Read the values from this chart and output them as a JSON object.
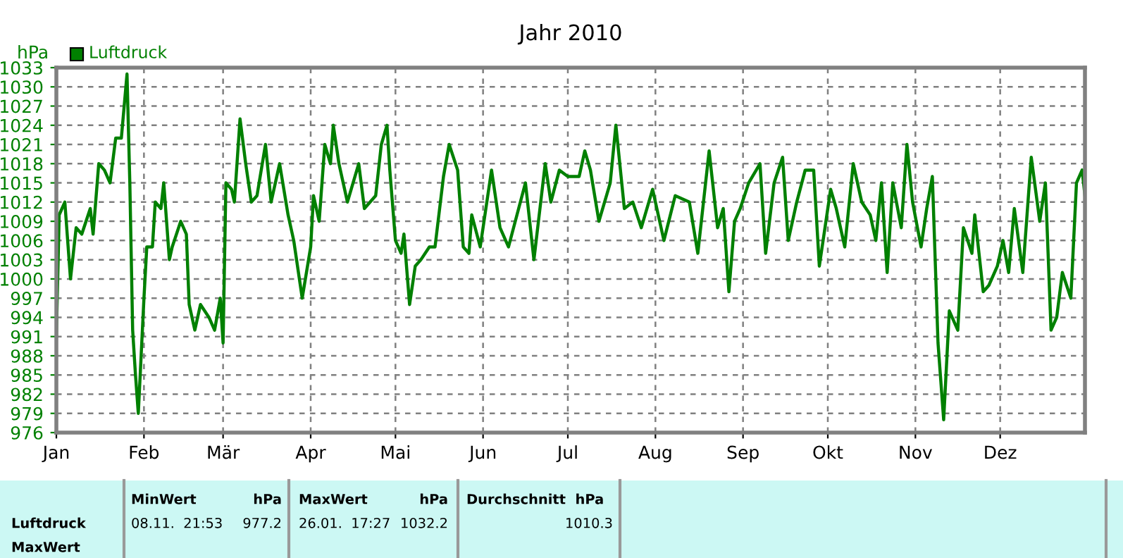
{
  "chart_data": {
    "type": "line",
    "title": "Jahr 2010",
    "ylabel": "hPa",
    "legend": "top left",
    "grid": true,
    "line_style": "solid",
    "marker": "none",
    "xlim": [
      "2010-01-01",
      "2010-12-31"
    ],
    "xticks": [
      {
        "value": "2010-01-01",
        "label": "Jan"
      },
      {
        "value": "2010-02-01",
        "label": "Feb"
      },
      {
        "value": "2010-03-01",
        "label": "Mär"
      },
      {
        "value": "2010-04-01",
        "label": "Apr"
      },
      {
        "value": "2010-05-01",
        "label": "Mai"
      },
      {
        "value": "2010-06-01",
        "label": "Jun"
      },
      {
        "value": "2010-07-01",
        "label": "Jul"
      },
      {
        "value": "2010-08-01",
        "label": "Aug"
      },
      {
        "value": "2010-09-01",
        "label": "Sep"
      },
      {
        "value": "2010-10-01",
        "label": "Okt"
      },
      {
        "value": "2010-11-01",
        "label": "Nov"
      },
      {
        "value": "2010-12-01",
        "label": "Dez"
      }
    ],
    "ylim": [
      976,
      1033
    ],
    "yticks": [
      976,
      979,
      982,
      985,
      988,
      991,
      994,
      997,
      1000,
      1003,
      1006,
      1009,
      1012,
      1015,
      1018,
      1021,
      1024,
      1027,
      1030,
      1033
    ],
    "x": [
      "2010-01-01",
      "2010-01-02",
      "2010-01-04",
      "2010-01-06",
      "2010-01-08",
      "2010-01-10",
      "2010-01-13",
      "2010-01-14",
      "2010-01-16",
      "2010-01-18",
      "2010-01-20",
      "2010-01-22",
      "2010-01-24",
      "2010-01-26",
      "2010-01-27",
      "2010-01-28",
      "2010-01-29",
      "2010-01-30",
      "2010-02-01",
      "2010-02-02",
      "2010-02-04",
      "2010-02-05",
      "2010-02-07",
      "2010-02-08",
      "2010-02-10",
      "2010-02-11",
      "2010-02-14",
      "2010-02-16",
      "2010-02-17",
      "2010-02-19",
      "2010-02-21",
      "2010-02-24",
      "2010-02-26",
      "2010-02-28",
      "2010-03-01",
      "2010-03-02",
      "2010-03-04",
      "2010-03-05",
      "2010-03-07",
      "2010-03-09",
      "2010-03-11",
      "2010-03-13",
      "2010-03-16",
      "2010-03-18",
      "2010-03-21",
      "2010-03-24",
      "2010-03-26",
      "2010-03-29",
      "2010-04-01",
      "2010-04-02",
      "2010-04-04",
      "2010-04-06",
      "2010-04-08",
      "2010-04-09",
      "2010-04-11",
      "2010-04-14",
      "2010-04-18",
      "2010-04-20",
      "2010-04-24",
      "2010-04-26",
      "2010-04-28",
      "2010-04-29",
      "2010-05-01",
      "2010-05-03",
      "2010-05-04",
      "2010-05-06",
      "2010-05-08",
      "2010-05-10",
      "2010-05-13",
      "2010-05-15",
      "2010-05-18",
      "2010-05-20",
      "2010-05-23",
      "2010-05-25",
      "2010-05-27",
      "2010-05-28",
      "2010-05-31",
      "2010-06-04",
      "2010-06-07",
      "2010-06-10",
      "2010-06-13",
      "2010-06-16",
      "2010-06-19",
      "2010-06-23",
      "2010-06-25",
      "2010-06-28",
      "2010-07-01",
      "2010-07-05",
      "2010-07-07",
      "2010-07-09",
      "2010-07-12",
      "2010-07-16",
      "2010-07-18",
      "2010-07-21",
      "2010-07-24",
      "2010-07-27",
      "2010-07-31",
      "2010-08-04",
      "2010-08-08",
      "2010-08-13",
      "2010-08-16",
      "2010-08-20",
      "2010-08-23",
      "2010-08-25",
      "2010-08-27",
      "2010-08-29",
      "2010-08-31",
      "2010-09-03",
      "2010-09-07",
      "2010-09-09",
      "2010-09-12",
      "2010-09-15",
      "2010-09-17",
      "2010-09-20",
      "2010-09-23",
      "2010-09-26",
      "2010-09-28",
      "2010-10-02",
      "2010-10-04",
      "2010-10-07",
      "2010-10-10",
      "2010-10-13",
      "2010-10-16",
      "2010-10-18",
      "2010-10-20",
      "2010-10-22",
      "2010-10-24",
      "2010-10-27",
      "2010-10-29",
      "2010-10-31",
      "2010-11-03",
      "2010-11-05",
      "2010-11-07",
      "2010-11-09",
      "2010-11-11",
      "2010-11-13",
      "2010-11-16",
      "2010-11-18",
      "2010-11-21",
      "2010-11-22",
      "2010-11-25",
      "2010-11-27",
      "2010-11-30",
      "2010-12-02",
      "2010-12-04",
      "2010-12-06",
      "2010-12-09",
      "2010-12-12",
      "2010-12-15",
      "2010-12-17",
      "2010-12-19",
      "2010-12-21",
      "2010-12-23",
      "2010-12-26",
      "2010-12-28",
      "2010-12-30",
      "2010-12-31"
    ],
    "series": [
      {
        "name": "Luftdruck",
        "color": "#008000",
        "values": [
          991,
          1010,
          1012,
          1000,
          1008,
          1007,
          1011,
          1007,
          1018,
          1017,
          1015,
          1022,
          1022,
          1032,
          1015,
          992,
          985,
          979,
          997,
          1005,
          1005,
          1012,
          1011,
          1015,
          1003,
          1005,
          1009,
          1007,
          996,
          992,
          996,
          994,
          992,
          997,
          990,
          1015,
          1014,
          1012,
          1025,
          1018,
          1012,
          1013,
          1021,
          1012,
          1018,
          1010,
          1006,
          997,
          1005,
          1013,
          1009,
          1021,
          1018,
          1024,
          1018,
          1012,
          1018,
          1011,
          1013,
          1021,
          1024,
          1017,
          1006,
          1004,
          1007,
          996,
          1002,
          1003,
          1005,
          1005,
          1016,
          1021,
          1017,
          1005,
          1004,
          1010,
          1005,
          1017,
          1008,
          1005,
          1010,
          1015,
          1003,
          1018,
          1012,
          1017,
          1016,
          1016,
          1020,
          1017,
          1009,
          1015,
          1024,
          1011,
          1012,
          1008,
          1014,
          1006,
          1013,
          1012,
          1004,
          1020,
          1008,
          1011,
          998,
          1009,
          1011,
          1015,
          1018,
          1004,
          1015,
          1019,
          1006,
          1012,
          1017,
          1017,
          1002,
          1014,
          1011,
          1005,
          1018,
          1012,
          1010,
          1006,
          1015,
          1001,
          1015,
          1008,
          1021,
          1012,
          1005,
          1011,
          1016,
          990,
          978,
          995,
          992,
          1008,
          1004,
          1010,
          998,
          999,
          1002,
          1006,
          1001,
          1011,
          1001,
          1019,
          1009,
          1015,
          992,
          994,
          1001,
          997,
          1015,
          1017,
          1013
        ]
      }
    ],
    "annotations": [
      "MinWert",
      "hPa",
      "MaxWert",
      "hPa",
      "Durchschnitt  hPa",
      "Luftdruck",
      "08.11.  21:53",
      "977.2",
      "26.01.  17:27",
      "1032.2",
      "1010.3",
      "MaxWert"
    ]
  }
}
